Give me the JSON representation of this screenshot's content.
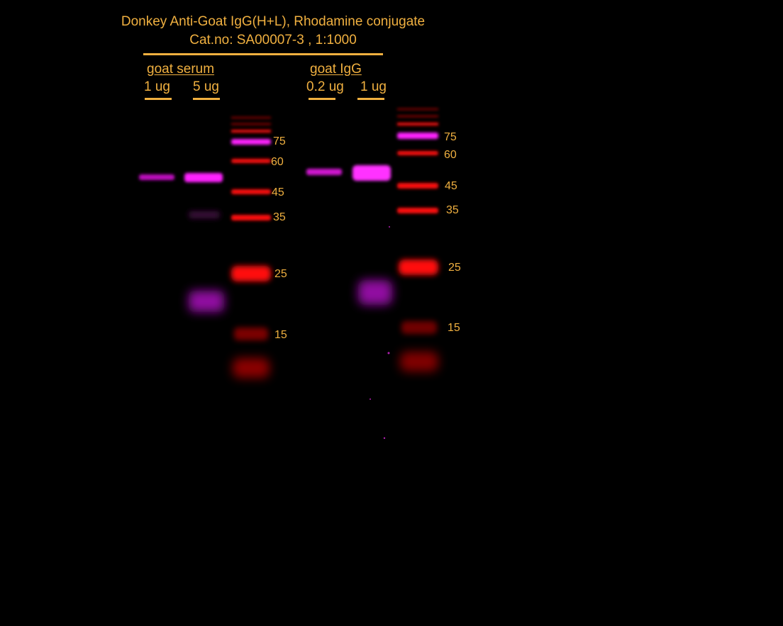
{
  "header": {
    "title": "Donkey Anti-Goat IgG(H+L), Rhodamine conjugate",
    "catalog": "Cat.no:  SA00007-3 ,  1:1000"
  },
  "groups": {
    "serum": {
      "name": "goat  serum",
      "lanes": [
        "1 ug",
        "5 ug"
      ]
    },
    "igg": {
      "name": "goat  IgG",
      "lanes": [
        "0.2 ug",
        "1 ug"
      ]
    }
  },
  "markers": {
    "left": [
      "75",
      "60",
      "45",
      "35",
      "25",
      "15"
    ],
    "right": [
      "75",
      "60",
      "45",
      "35",
      "25",
      "15"
    ]
  },
  "colors": {
    "label": "#f0b040",
    "ladder": "#ff1010",
    "signal": "#ff20ff",
    "background": "#000000"
  }
}
